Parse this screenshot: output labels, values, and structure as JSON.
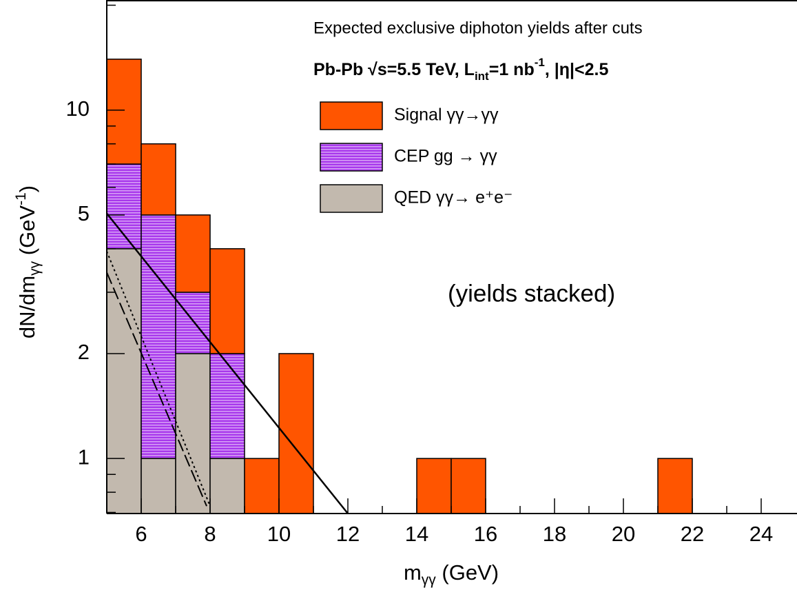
{
  "chart_data": {
    "type": "stacked_histogram",
    "title": "Expected exclusive diphoton yields after cuts",
    "subtitle": [
      "Pb-Pb √s=5.5 TeV, L",
      "int",
      "=1 nb",
      "-1",
      ", |η|<2.5"
    ],
    "annotation": "(yields stacked)",
    "x_label": [
      "m",
      "γγ",
      " (GeV)"
    ],
    "y_label": [
      "dN/dm",
      "γγ",
      " (GeV",
      "-1",
      ")"
    ],
    "bins": [
      5,
      6,
      7,
      8,
      9,
      10,
      11,
      12,
      13,
      14,
      15,
      16,
      17,
      18,
      19,
      20,
      21,
      22,
      23,
      24,
      25
    ],
    "series": [
      {
        "name": "Signal γγ→γγ",
        "color": "#ff5500",
        "values": [
          7,
          3,
          2,
          2,
          1,
          2,
          0,
          0,
          0,
          1,
          1,
          0,
          0,
          0,
          0,
          0,
          1,
          0,
          0,
          0
        ]
      },
      {
        "name": "CEP gg → γγ",
        "color": "#a838ec",
        "hatch": true,
        "values": [
          3,
          4,
          1,
          1,
          0,
          0,
          0,
          0,
          0,
          0,
          0,
          0,
          0,
          0,
          0,
          0,
          0,
          0,
          0,
          0
        ]
      },
      {
        "name": "QED γγ→ e⁺e⁻",
        "color": "#c2b9ae",
        "values": [
          4,
          1,
          2,
          1,
          0,
          0,
          0,
          0,
          0,
          0,
          0,
          0,
          0,
          0,
          0,
          0,
          0,
          0,
          0,
          0
        ]
      }
    ],
    "curves": [
      {
        "style": "solid",
        "x": [
          5,
          12
        ],
        "y": [
          5.05,
          0.695
        ]
      },
      {
        "style": "dotted",
        "x": [
          5,
          8
        ],
        "y": [
          3.93,
          0.73
        ]
      },
      {
        "style": "dashed",
        "x": [
          5,
          7.9
        ],
        "y": [
          3.42,
          0.73
        ]
      }
    ],
    "xlim": [
      5,
      25.04
    ],
    "ylim": [
      0.695,
      20.7
    ],
    "ylog": true,
    "xticks": [
      6,
      8,
      10,
      12,
      14,
      16,
      18,
      20,
      22,
      24
    ],
    "xticks_minor": [
      7,
      9,
      11,
      13,
      15,
      17,
      19,
      21,
      23
    ],
    "yticks": [
      1,
      2,
      5,
      10
    ],
    "yticks_minor": [
      0.7,
      0.8,
      0.9,
      3,
      4,
      6,
      7,
      8,
      9,
      20
    ],
    "legend": "top-right"
  }
}
